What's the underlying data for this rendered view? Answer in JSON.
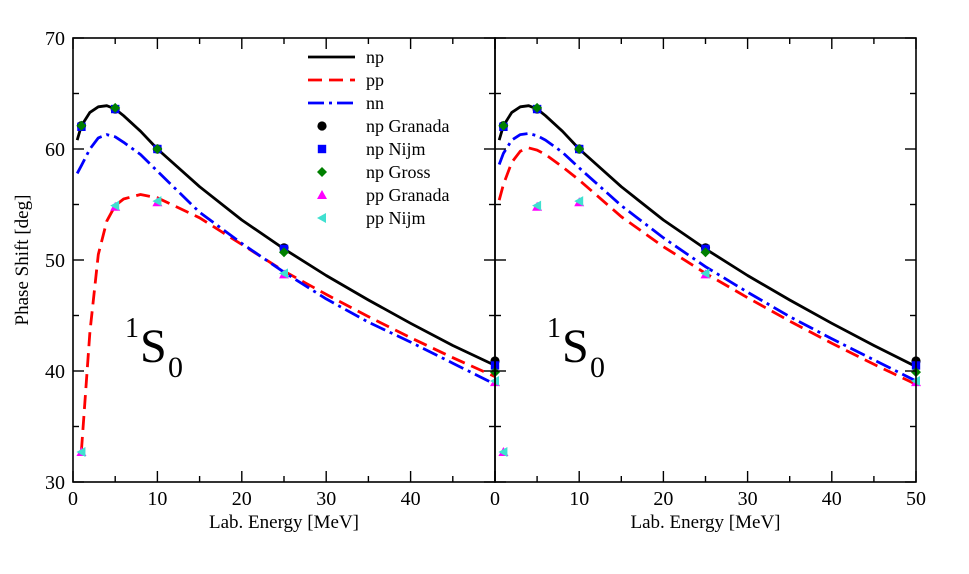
{
  "chart_data": [
    {
      "type": "line",
      "panel": "left",
      "xlim": [
        0,
        50
      ],
      "ylim": [
        30,
        70
      ],
      "xticks": [
        0,
        10,
        20,
        30,
        40
      ],
      "xtick_labels": [
        "0",
        "10",
        "20",
        "30",
        "40"
      ],
      "yticks": [
        30,
        40,
        50,
        60,
        70
      ],
      "ytick_labels": [
        "30",
        "40",
        "50",
        "60",
        "70"
      ],
      "xlabel": "Lab. Energy [MeV]",
      "ylabel": "Phase Shift [deg]",
      "annotation": {
        "base": "S",
        "superscript": "1",
        "subscript": "0"
      },
      "series": [
        {
          "name": "np",
          "style": "solid",
          "color": "#000000",
          "x": [
            0.5,
            1,
            2,
            3,
            4,
            5,
            6,
            8,
            10,
            15,
            20,
            25,
            30,
            35,
            40,
            45,
            50
          ],
          "y": [
            60.8,
            62.1,
            63.3,
            63.8,
            63.9,
            63.6,
            63.0,
            61.6,
            60.0,
            56.6,
            53.6,
            51.0,
            48.6,
            46.4,
            44.3,
            42.3,
            40.5
          ]
        },
        {
          "name": "pp",
          "style": "dashed",
          "color": "#ff0000",
          "x": [
            1,
            2,
            3,
            4,
            5,
            6,
            8,
            10,
            15,
            20,
            25,
            30,
            35,
            40,
            45,
            50
          ],
          "y": [
            32.8,
            43.5,
            50.5,
            53.5,
            54.9,
            55.5,
            55.9,
            55.6,
            53.8,
            51.4,
            49.0,
            46.9,
            44.9,
            43.0,
            41.2,
            39.5
          ]
        },
        {
          "name": "nn",
          "style": "dashdot",
          "color": "#0000ff",
          "x": [
            0.5,
            1,
            2,
            3,
            4,
            5,
            6,
            8,
            10,
            15,
            20,
            25,
            30,
            35,
            40,
            45,
            50
          ],
          "y": [
            57.8,
            58.5,
            60.0,
            61.0,
            61.3,
            61.1,
            60.6,
            59.5,
            58.0,
            54.3,
            51.5,
            48.9,
            46.5,
            44.4,
            42.6,
            40.7,
            38.8
          ]
        }
      ],
      "points": [
        {
          "name": "np Granada",
          "marker": "circle",
          "color": "#000000",
          "x": [
            1,
            5,
            10,
            25,
            50
          ],
          "y": [
            62.1,
            63.6,
            60.0,
            51.1,
            40.9
          ]
        },
        {
          "name": "np Nijm",
          "marker": "square",
          "color": "#0000ff",
          "x": [
            1,
            5,
            10,
            25,
            50
          ],
          "y": [
            62.0,
            63.6,
            60.0,
            51.0,
            40.5
          ]
        },
        {
          "name": "np Gross",
          "marker": "diamond",
          "color": "#008000",
          "x": [
            1,
            5,
            10,
            25,
            50
          ],
          "y": [
            62.1,
            63.7,
            60.0,
            50.7,
            39.9
          ]
        },
        {
          "name": "pp Granada",
          "marker": "triangle-up",
          "color": "#ff00ff",
          "x": [
            1,
            5,
            10,
            25,
            50
          ],
          "y": [
            32.7,
            54.8,
            55.2,
            48.7,
            39.0
          ]
        },
        {
          "name": "pp Nijm",
          "marker": "triangle-left",
          "color": "#40e0d0",
          "x": [
            1,
            5,
            10,
            25,
            50
          ],
          "y": [
            32.7,
            54.9,
            55.3,
            48.8,
            39.1
          ]
        }
      ]
    },
    {
      "type": "line",
      "panel": "right",
      "xlim": [
        0,
        50
      ],
      "ylim": [
        30,
        70
      ],
      "xticks": [
        0,
        10,
        20,
        30,
        40,
        50
      ],
      "xtick_labels": [
        "0",
        "10",
        "20",
        "30",
        "40",
        "50"
      ],
      "yticks": [
        30,
        40,
        50,
        60,
        70
      ],
      "xlabel": "Lab. Energy [MeV]",
      "annotation": {
        "base": "S",
        "superscript": "1",
        "subscript": "0"
      },
      "series": [
        {
          "name": "np",
          "style": "solid",
          "color": "#000000",
          "x": [
            0.5,
            1,
            2,
            3,
            4,
            5,
            6,
            8,
            10,
            15,
            20,
            25,
            30,
            35,
            40,
            45,
            50
          ],
          "y": [
            60.8,
            62.1,
            63.3,
            63.8,
            63.9,
            63.6,
            63.0,
            61.6,
            60.0,
            56.6,
            53.6,
            51.0,
            48.6,
            46.4,
            44.3,
            42.3,
            40.4
          ]
        },
        {
          "name": "pp",
          "style": "dashed",
          "color": "#ff0000",
          "x": [
            0.5,
            1,
            2,
            3,
            4,
            5,
            6,
            8,
            10,
            15,
            20,
            25,
            30,
            35,
            40,
            45,
            50
          ],
          "y": [
            55.4,
            56.8,
            58.8,
            59.8,
            60.1,
            59.9,
            59.5,
            58.4,
            57.2,
            53.9,
            51.2,
            48.8,
            46.6,
            44.5,
            42.5,
            40.6,
            38.8
          ]
        },
        {
          "name": "nn",
          "style": "dashdot",
          "color": "#0000ff",
          "x": [
            0.5,
            1,
            2,
            3,
            4,
            5,
            6,
            8,
            10,
            15,
            20,
            25,
            30,
            35,
            40,
            45,
            50
          ],
          "y": [
            58.6,
            59.6,
            60.8,
            61.3,
            61.4,
            61.2,
            60.8,
            59.7,
            58.3,
            54.9,
            52.0,
            49.4,
            47.1,
            44.9,
            42.9,
            41.0,
            39.1
          ]
        }
      ],
      "points": [
        {
          "name": "np Granada",
          "marker": "circle",
          "color": "#000000",
          "x": [
            1,
            5,
            10,
            25,
            50
          ],
          "y": [
            62.1,
            63.6,
            60.0,
            51.1,
            40.9
          ]
        },
        {
          "name": "np Nijm",
          "marker": "square",
          "color": "#0000ff",
          "x": [
            1,
            5,
            10,
            25,
            50
          ],
          "y": [
            62.0,
            63.6,
            60.0,
            51.0,
            40.5
          ]
        },
        {
          "name": "np Gross",
          "marker": "diamond",
          "color": "#008000",
          "x": [
            1,
            5,
            10,
            25,
            50
          ],
          "y": [
            62.1,
            63.7,
            60.0,
            50.7,
            39.9
          ]
        },
        {
          "name": "pp Granada",
          "marker": "triangle-up",
          "color": "#ff00ff",
          "x": [
            1,
            5,
            10,
            25,
            50
          ],
          "y": [
            32.7,
            54.8,
            55.2,
            48.7,
            39.0
          ]
        },
        {
          "name": "pp Nijm",
          "marker": "triangle-left",
          "color": "#40e0d0",
          "x": [
            1,
            5,
            10,
            25,
            50
          ],
          "y": [
            32.7,
            54.9,
            55.3,
            48.8,
            39.1
          ]
        }
      ]
    }
  ],
  "legend": {
    "placement": "top-center",
    "entries": [
      {
        "label": "np",
        "kind": "line",
        "style": "solid",
        "color": "#000000"
      },
      {
        "label": "pp",
        "kind": "line",
        "style": "dashed",
        "color": "#ff0000"
      },
      {
        "label": "nn",
        "kind": "line",
        "style": "dashdot",
        "color": "#0000ff"
      },
      {
        "label": "np Granada",
        "kind": "marker",
        "marker": "circle",
        "color": "#000000"
      },
      {
        "label": "np Nijm",
        "kind": "marker",
        "marker": "square",
        "color": "#0000ff"
      },
      {
        "label": "np Gross",
        "kind": "marker",
        "marker": "diamond",
        "color": "#008000"
      },
      {
        "label": "pp Granada",
        "kind": "marker",
        "marker": "triangle-up",
        "color": "#ff00ff"
      },
      {
        "label": "pp Nijm",
        "kind": "marker",
        "marker": "triangle-left",
        "color": "#40e0d0"
      }
    ]
  }
}
